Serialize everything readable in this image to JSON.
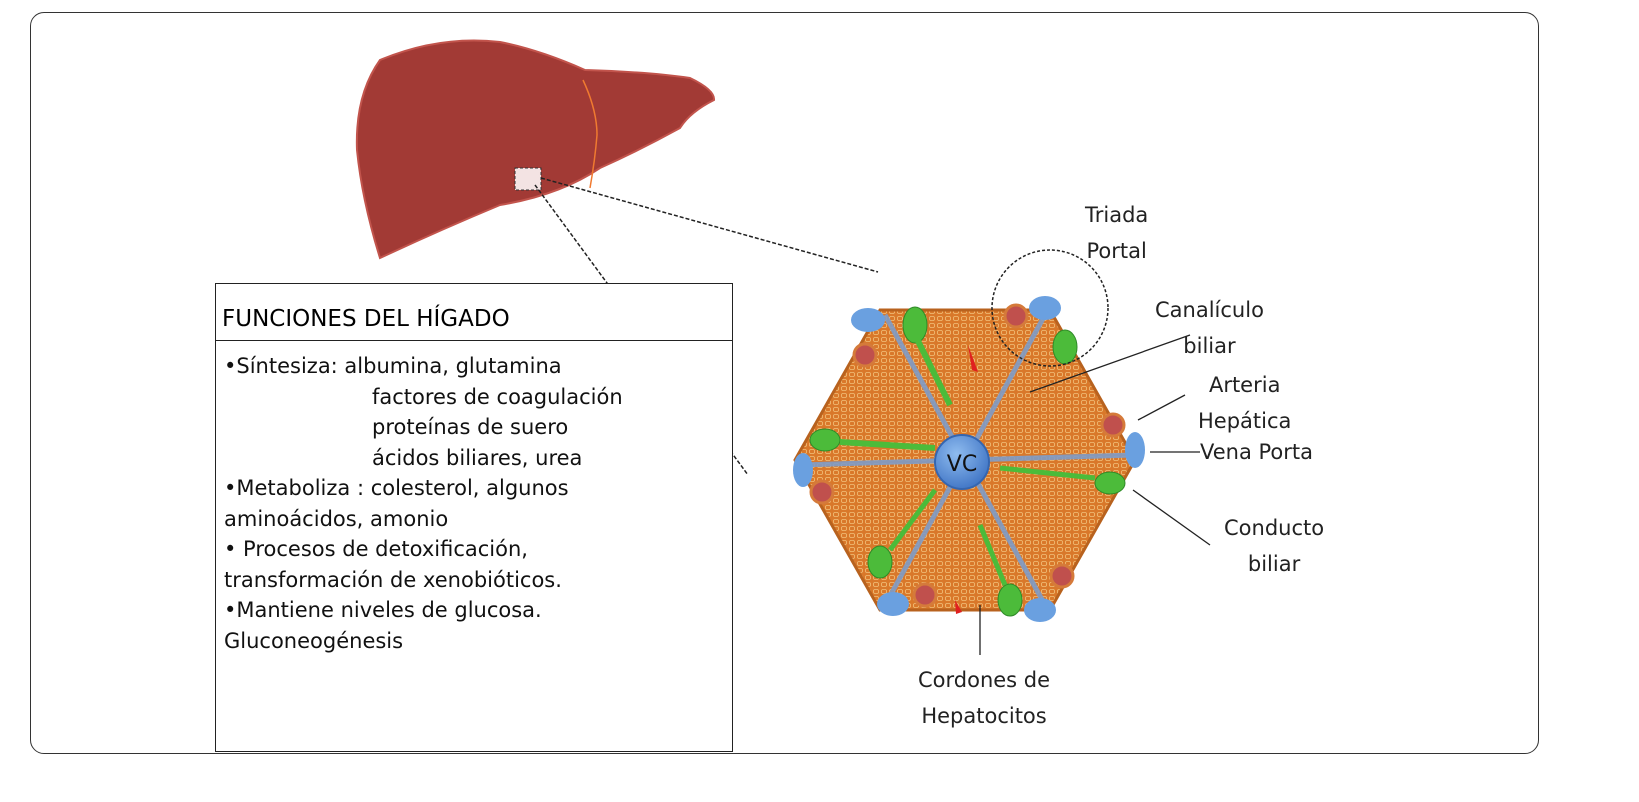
{
  "functions_box": {
    "title": "FUNCIONES  DEL HÍGADO",
    "lines": [
      "•Síntesiza:  albumina, glutamina",
      "factores de coagulación",
      "proteínas de suero",
      "ácidos biliares, urea",
      "•Metaboliza : colesterol, algunos",
      "aminoácidos, amonio",
      "• Procesos de detoxificación,",
      "transformación de xenobióticos.",
      "•Mantiene niveles de glucosa.",
      "Gluconeogénesis"
    ]
  },
  "lobule": {
    "center_label": "VC",
    "labels": {
      "triada_portal": [
        "Triada",
        "Portal"
      ],
      "canaliculo": [
        "Canalículo",
        "biliar"
      ],
      "arteria": [
        "Arteria",
        "Hepática"
      ],
      "vena": "Vena Porta",
      "conducto": [
        "Conducto",
        "biliar"
      ],
      "cordones": [
        "Cordones de",
        "Hepatocitos"
      ]
    }
  },
  "colors": {
    "liver": "#a23a35",
    "hepatocyte": "#d97a2a",
    "vein": "#6aa0e0",
    "bile": "#4cbb3a",
    "artery": "#c0504d"
  }
}
